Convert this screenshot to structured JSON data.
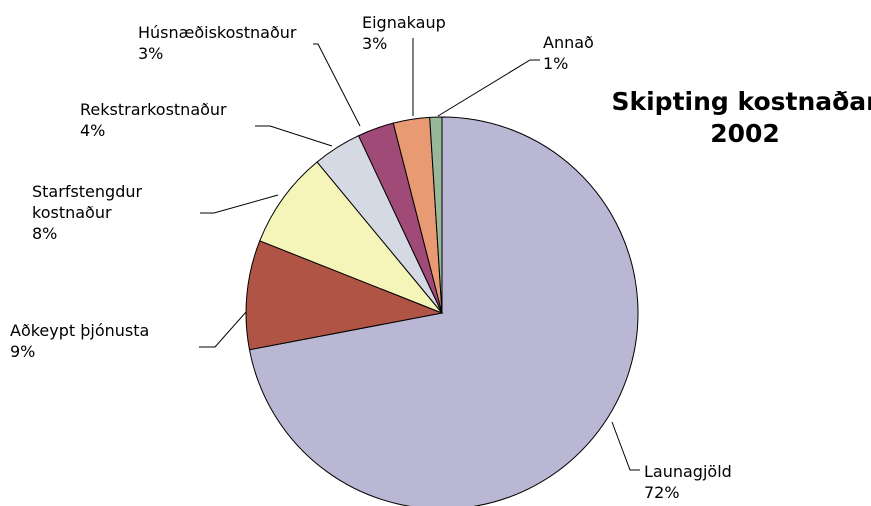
{
  "chart_data": {
    "type": "pie",
    "title": "Skipting kostnaðar 2002",
    "categories": [
      "Launagjöld",
      "Aðkeypt þjónusta",
      "Starfstengdur kostnaður",
      "Rekstrarkostnaður",
      "Húsnæðiskostnaður",
      "Eignakaup",
      "Annað"
    ],
    "values": [
      72,
      9,
      8,
      4,
      3,
      3,
      1
    ],
    "value_labels": [
      "72%",
      "9%",
      "8%",
      "4%",
      "3%",
      "3%",
      "1%"
    ],
    "colors": [
      "#b9b7d3",
      "#b05545",
      "#f5f5b9",
      "#d4d9e3",
      "#a04a78",
      "#e89a72",
      "#99b89a"
    ]
  }
}
